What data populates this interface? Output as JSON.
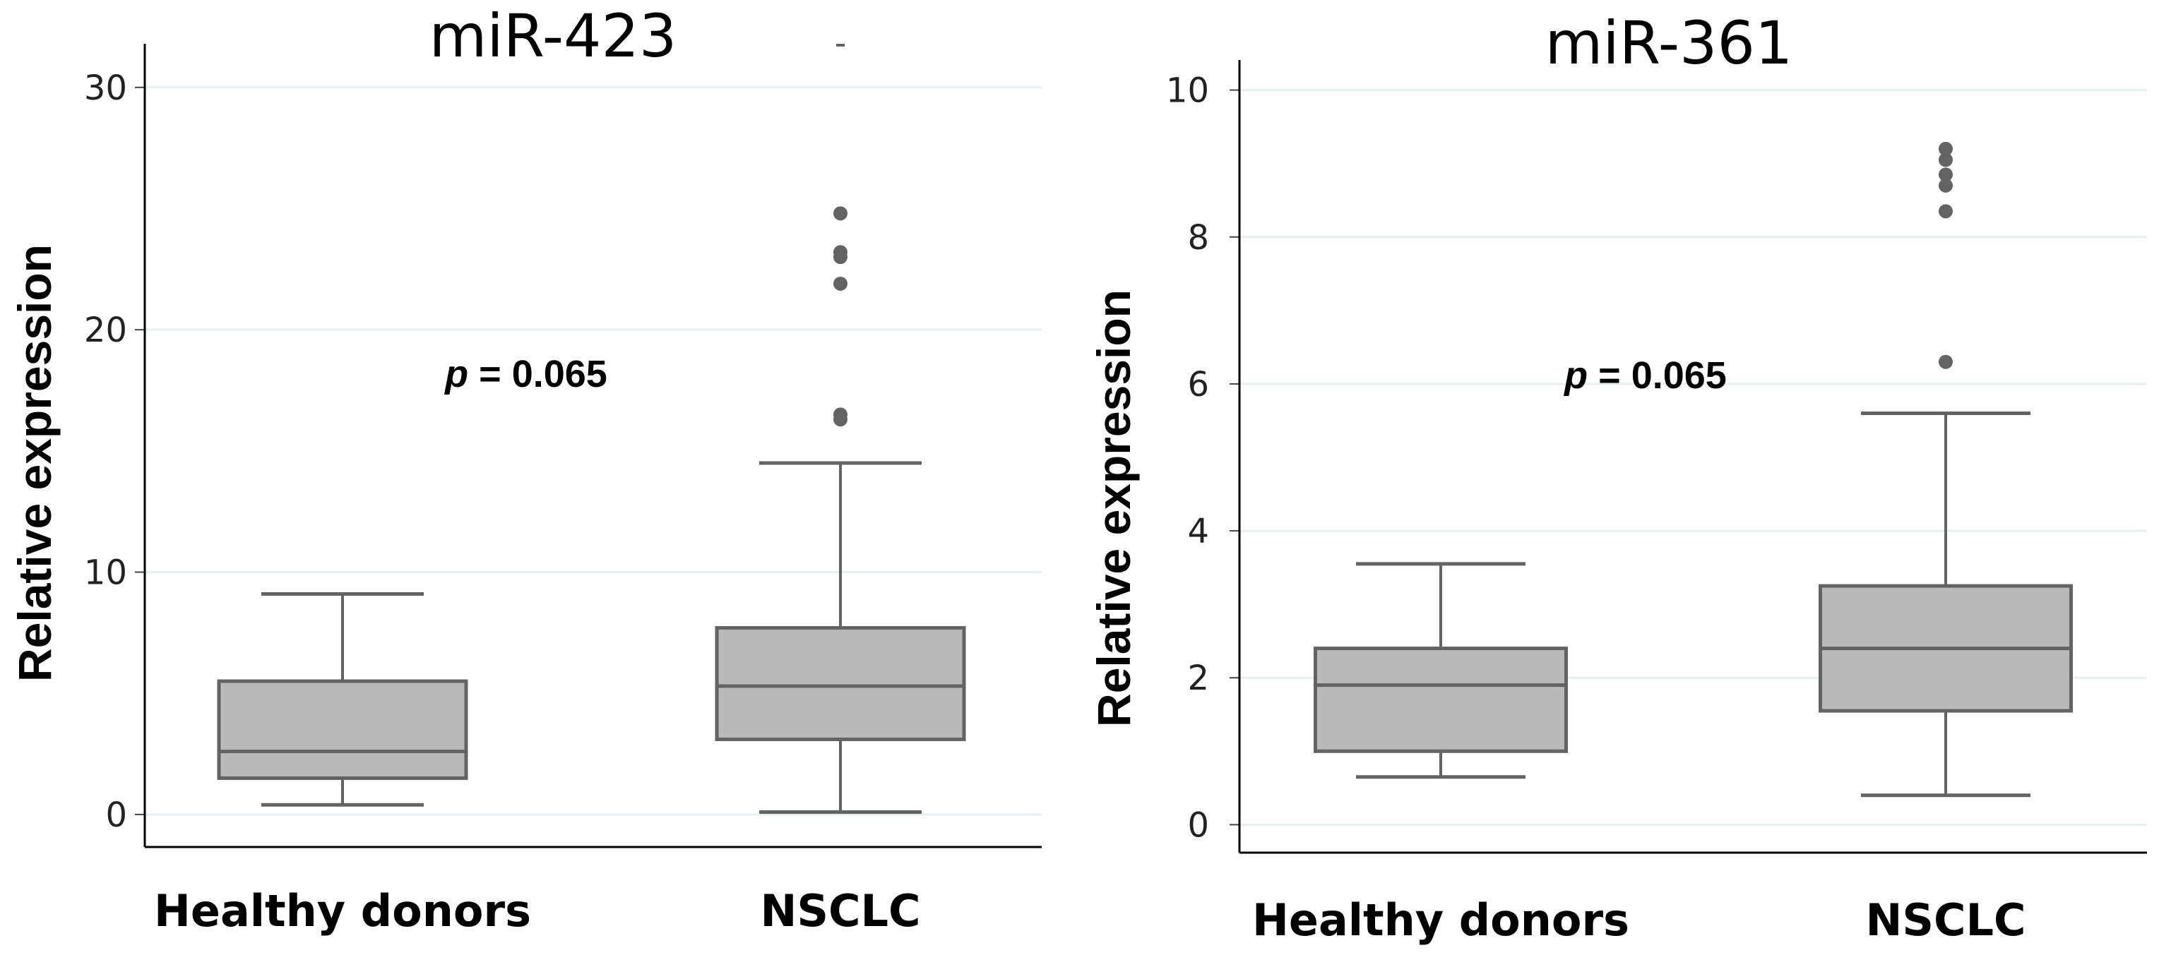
{
  "colors": {
    "box_fill": "#b9b9b9",
    "box_stroke": "#636363",
    "outlier": "#636363",
    "gridline": "#e6eff1",
    "axis": "#000000"
  },
  "chart_data": [
    {
      "type": "box",
      "title": "miR-423",
      "xlabel": "",
      "ylabel": "Relative expression",
      "ylim": [
        -1.4,
        31.8
      ],
      "yticks": [
        0,
        10,
        20,
        30
      ],
      "ytick_labels": [
        "0",
        "10",
        "20",
        "30"
      ],
      "grid": true,
      "annotation": {
        "prefix": "p",
        "text": " = 0.065"
      },
      "categories": [
        "Healthy donors",
        "NSCLC"
      ],
      "boxes": [
        {
          "name": "Healthy donors",
          "whisker_low": 0.4,
          "q1": 1.5,
          "median": 2.6,
          "q3": 5.5,
          "whisker_high": 9.1,
          "outliers": []
        },
        {
          "name": "NSCLC",
          "whisker_low": 0.1,
          "q1": 3.1,
          "median": 5.3,
          "q3": 7.7,
          "whisker_high": 14.5,
          "outliers": [
            16.3,
            16.5,
            21.9,
            23.0,
            23.2,
            24.8,
            31.8
          ]
        }
      ]
    },
    {
      "type": "box",
      "title": "miR-361",
      "xlabel": "",
      "ylabel": "Relative expression",
      "ylim": [
        -0.4,
        10.4
      ],
      "yticks": [
        0,
        2,
        4,
        6,
        8,
        10
      ],
      "ytick_labels": [
        "0",
        "2",
        "4",
        "6",
        "8",
        "10"
      ],
      "grid": true,
      "annotation": {
        "prefix": "p",
        "text": " = 0.065"
      },
      "categories": [
        "Healthy donors",
        "NSCLC"
      ],
      "boxes": [
        {
          "name": "Healthy donors",
          "whisker_low": 0.65,
          "q1": 1.0,
          "median": 1.9,
          "q3": 2.4,
          "whisker_high": 3.55,
          "outliers": []
        },
        {
          "name": "NSCLC",
          "whisker_low": 0.4,
          "q1": 1.55,
          "median": 2.4,
          "q3": 3.25,
          "whisker_high": 5.6,
          "outliers": [
            6.3,
            8.35,
            8.7,
            8.85,
            9.05,
            9.2
          ]
        }
      ]
    }
  ]
}
